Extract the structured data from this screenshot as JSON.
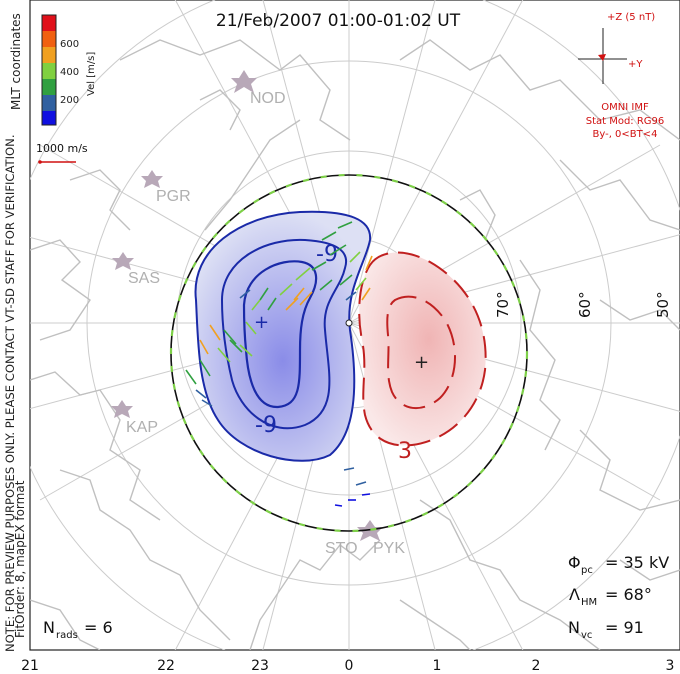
{
  "title": "21/Feb/2007 01:00-01:02 UT",
  "side_note": "NOTE: FOR PREVIEW PURPOSES ONLY. PLEASE CONTACT VT-SD STAFF FOR VERIFICATION.",
  "fit_note": "FitOrder: 8, mapEX format",
  "coord_label": "MLT coordinates",
  "colorbar": {
    "label": "Vel [m/s]",
    "ticks": [
      "600",
      "400",
      "200"
    ],
    "colors": [
      "#e0101a",
      "#f06010",
      "#f0a020",
      "#80d040",
      "#30a040",
      "#3060a0",
      "#1010e0"
    ]
  },
  "scale_vector": "1000 m/s",
  "imf": {
    "z_label": "+Z (5 nT)",
    "y_label": "+Y",
    "source": "OMNI IMF",
    "model": "Stat Mod: RG96",
    "condition": "By-, 0<BT<4"
  },
  "stations": [
    "NOD",
    "PGR",
    "SAS",
    "KAP",
    "STO",
    "PYK"
  ],
  "latitude_labels": [
    "70°",
    "60°",
    "50°"
  ],
  "mlt_labels": [
    "21",
    "22",
    "23",
    "0",
    "1",
    "2",
    "3"
  ],
  "contour_labels": [
    "-9",
    "-9",
    "3"
  ],
  "stats": {
    "phi_symbol": "Φ",
    "phi_sub": "pc",
    "phi_value": "= 35 kV",
    "lambda_symbol": "Λ",
    "lambda_sub": "HM",
    "lambda_value": "= 68°",
    "nvc_symbol": "N",
    "nvc_sub": "vc",
    "nvc_value": "= 91",
    "nrads_symbol": "N",
    "nrads_sub": "rads",
    "nrads_value": "= 6"
  },
  "colors": {
    "negative_cell_fill": "#b8bce8",
    "negative_contour": "#1a2aa8",
    "positive_cell_fill": "#f2c8c8",
    "positive_contour": "#c02020",
    "grid": "#c8c8c8",
    "coast": "#c0c0c0",
    "imf": "#d01010",
    "station": "#b8a8b8"
  }
}
